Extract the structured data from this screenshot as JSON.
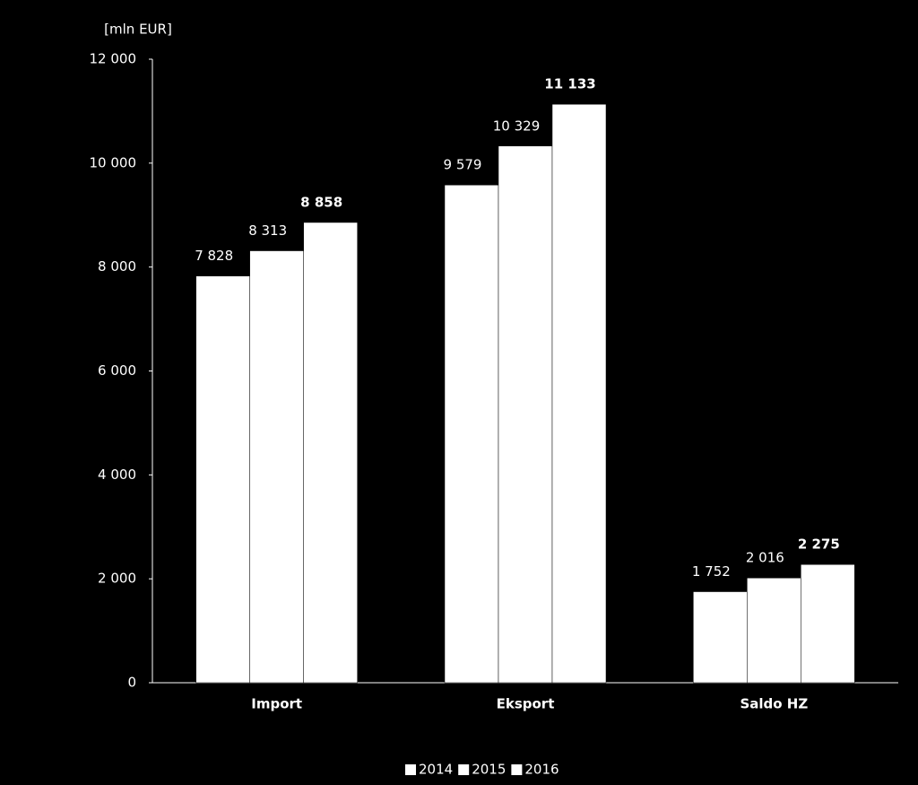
{
  "chart_data": {
    "type": "bar",
    "y_label": "[mln EUR]",
    "categories": [
      "Import",
      "Eksport",
      "Saldo HZ"
    ],
    "series": [
      {
        "name": "2014",
        "color": "#ffffff",
        "values": [
          7828,
          9579,
          1752
        ],
        "value_labels": [
          "7 828",
          "9 579",
          "1 752"
        ]
      },
      {
        "name": "2015",
        "color": "#ffffff",
        "values": [
          8313,
          10329,
          2016
        ],
        "value_labels": [
          "8 313",
          "10 329",
          "2 016"
        ]
      },
      {
        "name": "2016",
        "color": "#ffffff",
        "values": [
          8858,
          11133,
          2275
        ],
        "value_labels": [
          "8 858",
          "11 133",
          "2 275"
        ],
        "bold_labels": true
      }
    ],
    "ylim": [
      0,
      12000
    ],
    "yticks": [
      0,
      {
        "value": 2000,
        "label": "2 000"
      },
      {
        "value": 4000,
        "label": "4 000"
      },
      {
        "value": 6000,
        "label": "6 000"
      },
      {
        "value": 8000,
        "label": "8 000"
      },
      {
        "value": 10000,
        "label": "10 000"
      },
      {
        "value": 12000,
        "label": "12 000"
      }
    ],
    "grid": false,
    "legend": "bottom"
  }
}
